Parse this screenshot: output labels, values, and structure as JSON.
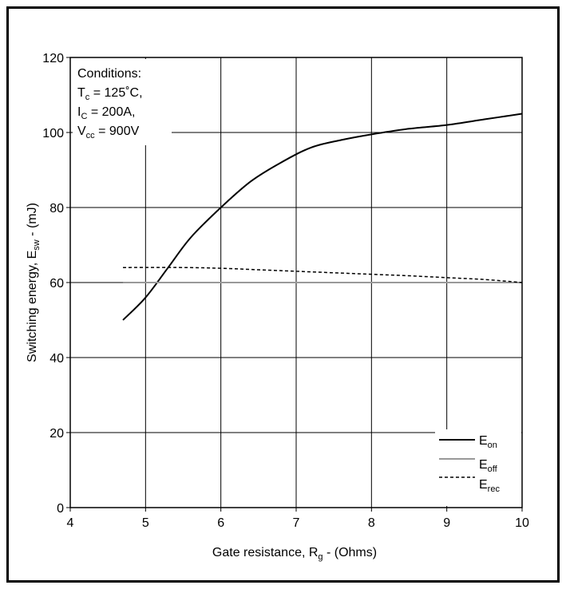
{
  "chart_data": {
    "type": "line",
    "title": "",
    "xlabel_main": "Gate resistance, R",
    "xlabel_sub": "g",
    "xlabel_tail": " - (Ohms)",
    "ylabel_main": "Switching energy, E",
    "ylabel_sub": "sw",
    "ylabel_tail": " - (mJ)",
    "xlim": [
      4,
      10
    ],
    "ylim": [
      0,
      120
    ],
    "xticks": [
      4,
      5,
      6,
      7,
      8,
      9,
      10
    ],
    "yticks": [
      0,
      20,
      40,
      60,
      80,
      100,
      120
    ],
    "grid": true,
    "legend_placement": "bottom-right",
    "conditions": {
      "heading": "Conditions:",
      "line1_main": "T",
      "line1_sub": "c",
      "line1_tail": " = 125˚C,",
      "line2_main": "I",
      "line2_sub": "C",
      "line2_tail": " = 200A,",
      "line3_main": "V",
      "line3_sub": "cc",
      "line3_tail": " = 900V"
    },
    "series": [
      {
        "name_main": "E",
        "name_sub": "on",
        "style": "solid",
        "color": "#000000",
        "x": [
          4.7,
          5.0,
          5.3,
          5.6,
          6.0,
          6.4,
          6.8,
          7.2,
          7.6,
          8.0,
          8.5,
          9.0,
          9.5,
          10.0
        ],
        "y": [
          50,
          56,
          64,
          72,
          80,
          87,
          92,
          96,
          98,
          99.5,
          101,
          102,
          103.5,
          105
        ]
      },
      {
        "name_main": "E",
        "name_sub": "off",
        "style": "solid",
        "color": "#999999",
        "x": [
          4.7,
          10.0
        ],
        "y": [
          60,
          60
        ]
      },
      {
        "name_main": "E",
        "name_sub": "rec",
        "style": "dashed",
        "color": "#000000",
        "x": [
          4.7,
          5.5,
          6.0,
          6.5,
          7.0,
          7.5,
          8.0,
          8.5,
          9.0,
          9.5,
          10.0
        ],
        "y": [
          64,
          64,
          63.8,
          63.4,
          63,
          62.6,
          62.2,
          61.8,
          61.3,
          60.8,
          60
        ]
      }
    ]
  }
}
